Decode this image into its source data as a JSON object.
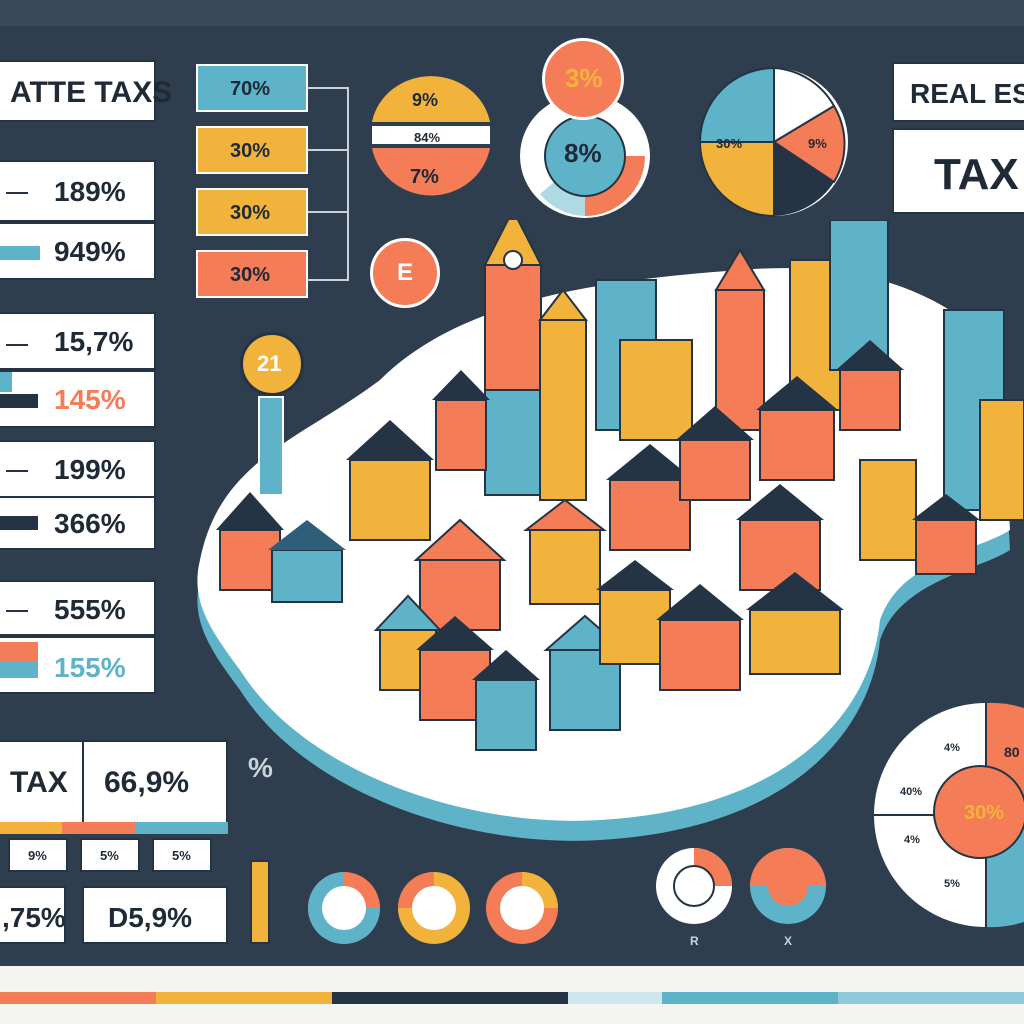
{
  "left_panel": {
    "title": "ATTE TAXS",
    "rows": [
      {
        "top": "189%",
        "bottom": "949%"
      },
      {
        "top": "15,7%",
        "bottom": "145%"
      },
      {
        "top": "199%",
        "bottom": "366%"
      },
      {
        "top": "555%",
        "bottom": "155%"
      }
    ],
    "tax_label": "TAX",
    "tax_value": "66,9%",
    "mini_labels": [
      "9%",
      "5%",
      "5%"
    ],
    "bottom_values": [
      ",75%",
      "D5,9%"
    ]
  },
  "tag_column": [
    "70%",
    "30%",
    "30%",
    "30%"
  ],
  "circles": {
    "half_top": "9%",
    "half_mid": "84%",
    "half_bottom": "7%",
    "e_label": "E",
    "small_top": "3%",
    "donut_center": "8%",
    "coin": "21",
    "pie_left": "30%",
    "pie_right": "9%"
  },
  "right_panel": {
    "title": "REAL EST",
    "subtitle": "TAX",
    "big_pie": {
      "center": "30%",
      "labels": [
        "4%",
        "40%",
        "4%",
        "5%"
      ],
      "right_label": "80"
    }
  },
  "misc": {
    "percent_sign": "%",
    "bottom_letters": [
      "R",
      "X"
    ]
  },
  "colors": {
    "navy": "#2f3e4e",
    "orange": "#f47c57",
    "yellow": "#f2b33d",
    "blue": "#5fb3c8",
    "white": "#ffffff"
  }
}
